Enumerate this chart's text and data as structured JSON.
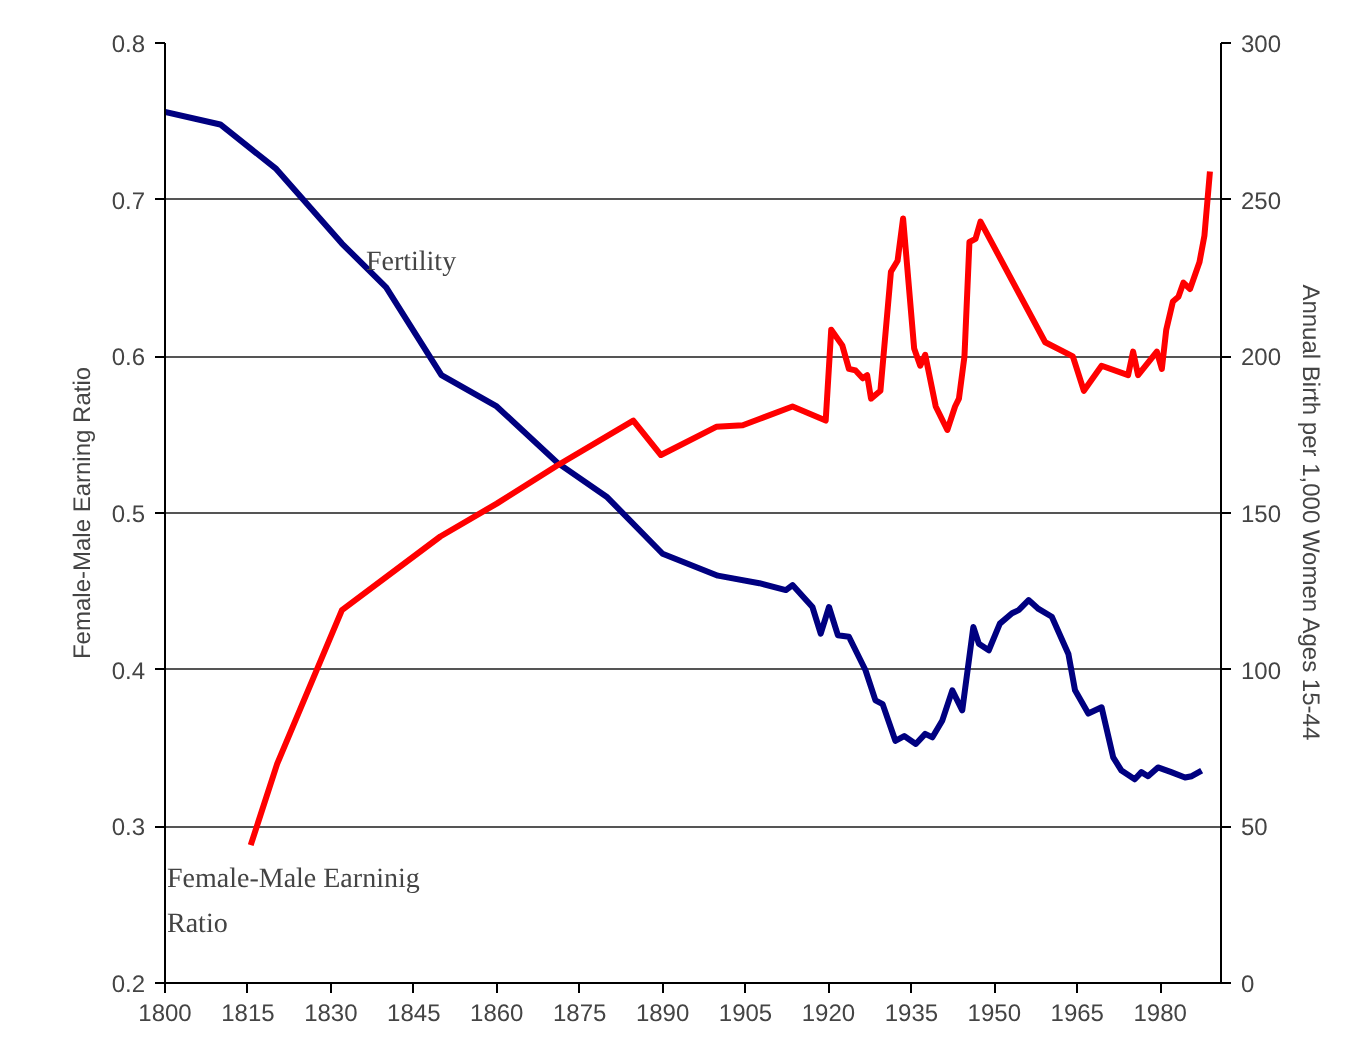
{
  "chart_data": {
    "type": "line",
    "xlabel": null,
    "ylabel": "Female-Male Earning Ratio",
    "y2label": "Annual Birth per 1,000 Women Ages 15-44",
    "xlim": [
      1800,
      1991
    ],
    "xticks": [
      1800,
      1815,
      1830,
      1845,
      1860,
      1875,
      1890,
      1905,
      1920,
      1935,
      1950,
      1965,
      1980
    ],
    "ylim": [
      0.2,
      0.8
    ],
    "yticks": [
      0.2,
      0.3,
      0.4,
      0.5,
      0.6,
      0.7,
      0.8
    ],
    "y2lim": [
      0,
      300
    ],
    "y2ticks": [
      0,
      50,
      100,
      150,
      200,
      250,
      300
    ],
    "grid": "y",
    "line_style": "solid",
    "series": [
      {
        "name": "Fertility",
        "color": "#000080",
        "axis": "y2",
        "x": [
          1800,
          1810,
          1820,
          1832,
          1840,
          1850,
          1860,
          1871,
          1880,
          1890,
          1900,
          1907.5,
          1912.3,
          1913.5,
          1917.1,
          1918.6,
          1920.1,
          1921.7,
          1923.7,
          1926.7,
          1928.5,
          1929.8,
          1932.1,
          1933.7,
          1935.8,
          1937.5,
          1938.8,
          1940.6,
          1942.4,
          1944.2,
          1946.2,
          1947.2,
          1949,
          1951,
          1953.2,
          1954.4,
          1956.2,
          1958,
          1960.4,
          1963.4,
          1964.6,
          1967,
          1969.4,
          1971.5,
          1973,
          1975.4,
          1976.6,
          1977.8,
          1979.6,
          1982,
          1984.5,
          1985.7,
          1987.5
        ],
        "values": [
          278,
          274,
          260,
          236,
          222,
          194,
          184,
          166,
          155,
          137,
          130,
          127.6,
          125.4,
          127,
          120,
          111.5,
          120,
          111,
          110.5,
          99.8,
          90.2,
          89,
          77.3,
          78.8,
          76.3,
          79.5,
          78.4,
          83.8,
          93.4,
          87,
          113.6,
          108.3,
          106.2,
          114.7,
          118,
          119,
          122.2,
          119.4,
          116.9,
          105,
          93.4,
          86,
          88,
          72,
          67.8,
          65,
          67.3,
          66,
          68.8,
          67.3,
          65.6,
          66,
          67.8
        ]
      },
      {
        "name": "Female-Male Earninig Ratio",
        "color": "#ff0000",
        "axis": "y",
        "x": [
          1815.5,
          1820.3,
          1832,
          1849.8,
          1860,
          1870.8,
          1884.7,
          1889.7,
          1899.7,
          1904.5,
          1907.5,
          1913.5,
          1919.5,
          1920.5,
          1922.5,
          1923.7,
          1924.9,
          1926.2,
          1927,
          1927.7,
          1929.4,
          1931.3,
          1932.5,
          1933.5,
          1935.5,
          1936.6,
          1937.5,
          1939.4,
          1941.5,
          1942.9,
          1943.6,
          1944.6,
          1945.5,
          1946.6,
          1947.5,
          1959.2,
          1964.2,
          1966.2,
          1969.4,
          1974.2,
          1975.1,
          1976,
          1979.4,
          1980.3,
          1981.1,
          1982.3,
          1983.3,
          1984.2,
          1985.4,
          1987.1,
          1988,
          1989
        ],
        "values": [
          0.288,
          0.34,
          0.438,
          0.485,
          0.506,
          0.53,
          0.559,
          0.537,
          0.555,
          0.556,
          0.56,
          0.568,
          0.559,
          0.617,
          0.607,
          0.592,
          0.591,
          0.586,
          0.588,
          0.573,
          0.578,
          0.654,
          0.661,
          0.688,
          0.605,
          0.594,
          0.601,
          0.568,
          0.553,
          0.568,
          0.573,
          0.6,
          0.673,
          0.675,
          0.686,
          0.609,
          0.6,
          0.578,
          0.594,
          0.588,
          0.603,
          0.588,
          0.603,
          0.592,
          0.617,
          0.635,
          0.638,
          0.647,
          0.643,
          0.66,
          0.677,
          0.718
        ]
      }
    ]
  }
}
